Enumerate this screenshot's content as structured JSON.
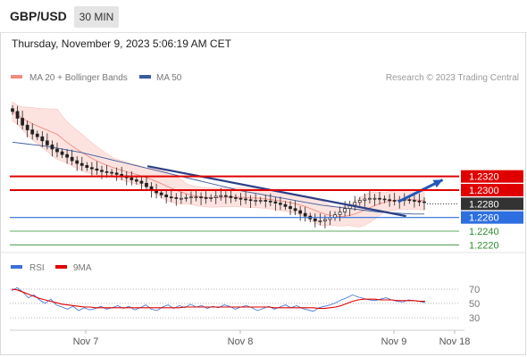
{
  "header": {
    "symbol": "GBP/USD",
    "timeframe": "30 MIN",
    "timestamp": "Thursday, November 9, 2023 5:06:19 AM CET"
  },
  "chart_data": [
    {
      "type": "candlestick",
      "legend": [
        {
          "name": "MA 20 + Bollinger Bands",
          "color": "#f28b82"
        },
        {
          "name": "MA 50",
          "color": "#3b5b9e"
        }
      ],
      "legend_placement": "top-left",
      "watermark": "Research © 2023 Trading Central",
      "ylim": [
        1.221,
        1.245
      ],
      "x_ticks": [
        "Nov 7",
        "Nov 8",
        "Nov 9",
        "Nov 18"
      ],
      "levels": [
        {
          "label": "1.2320",
          "value": 1.232,
          "color": "#e00000",
          "style": "resistance"
        },
        {
          "label": "1.2300",
          "value": 1.23,
          "color": "#e00000",
          "style": "resistance"
        },
        {
          "label": "1.2280",
          "value": 1.228,
          "color": "#333333",
          "style": "last-price"
        },
        {
          "label": "1.2260",
          "value": 1.226,
          "color": "#2d6fe0",
          "style": "pivot"
        },
        {
          "label": "1.2240",
          "value": 1.224,
          "color": "#2e8b2e",
          "style": "support"
        },
        {
          "label": "1.2220",
          "value": 1.222,
          "color": "#2e8b2e",
          "style": "support"
        }
      ],
      "close": [
        1.2415,
        1.2405,
        1.2395,
        1.2388,
        1.2382,
        1.2378,
        1.2372,
        1.2366,
        1.236,
        1.2356,
        1.2352,
        1.2348,
        1.2343,
        1.2339,
        1.2336,
        1.2333,
        1.2331,
        1.2329,
        1.2327,
        1.2326,
        1.2325,
        1.2323,
        1.2321,
        1.2318,
        1.2315,
        1.2313,
        1.231,
        1.2305,
        1.23,
        1.2296,
        1.2293,
        1.229,
        1.2289,
        1.2288,
        1.2288,
        1.2289,
        1.229,
        1.229,
        1.2289,
        1.2288,
        1.2289,
        1.2291,
        1.2292,
        1.2291,
        1.2289,
        1.2288,
        1.2287,
        1.2286,
        1.2285,
        1.2285,
        1.2285,
        1.2284,
        1.2283,
        1.2281,
        1.2279,
        1.2276,
        1.2273,
        1.227,
        1.2266,
        1.2262,
        1.2258,
        1.2255,
        1.2255,
        1.2257,
        1.226,
        1.2264,
        1.2268,
        1.2273,
        1.2278,
        1.2282,
        1.2285,
        1.2287,
        1.2288,
        1.2288,
        1.2287,
        1.2286,
        1.2285,
        1.2284,
        1.2285,
        1.2286,
        1.2285,
        1.2284,
        1.2283,
        1.2282
      ],
      "ma50": [
        1.237,
        1.2368,
        1.2366,
        1.2364,
        1.2361,
        1.2358,
        1.2355,
        1.2351,
        1.2347,
        1.2343,
        1.2339,
        1.2335,
        1.2331,
        1.2327,
        1.2323,
        1.2319,
        1.2315,
        1.2311,
        1.2307,
        1.2303,
        1.2299,
        1.2296,
        1.2293,
        1.229,
        1.2287,
        1.2284,
        1.2281,
        1.2278,
        1.2276,
        1.2274,
        1.2272,
        1.227,
        1.2268,
        1.2267,
        1.2266,
        1.2265,
        1.2265
      ],
      "trendline": [
        [
          0.33,
          1.2335
        ],
        [
          0.95,
          1.2262
        ]
      ],
      "arrow": [
        [
          0.875,
          1.2283
        ],
        [
          0.975,
          1.2315
        ]
      ]
    },
    {
      "type": "line",
      "legend": [
        {
          "name": "RSI",
          "color": "#3b6fd8"
        },
        {
          "name": "9MA",
          "color": "#e00000"
        }
      ],
      "ylim": [
        20,
        80
      ],
      "y_ticks": [
        "70",
        "50",
        "30"
      ],
      "series": [
        {
          "name": "RSI",
          "values": [
            68,
            72,
            66,
            58,
            62,
            55,
            50,
            56,
            48,
            45,
            42,
            46,
            40,
            44,
            41,
            43,
            46,
            42,
            44,
            47,
            43,
            46,
            41,
            44,
            48,
            42,
            40,
            45,
            48,
            43,
            47,
            44,
            49,
            45,
            47,
            43,
            46,
            44,
            48,
            46,
            42,
            45,
            47,
            44,
            40,
            43,
            46,
            42,
            45,
            48,
            44,
            47,
            43,
            41,
            39,
            44,
            46,
            48,
            51,
            55,
            58,
            62,
            59,
            57,
            55,
            54,
            56,
            58,
            55,
            53,
            52,
            55,
            54,
            53,
            51
          ]
        },
        {
          "name": "9MA",
          "values": [
            70,
            69,
            66,
            63,
            60,
            57,
            55,
            53,
            51,
            49,
            48,
            47,
            46,
            45,
            45,
            44,
            44,
            44,
            44,
            44,
            44,
            44,
            44,
            44,
            44,
            44,
            44,
            44,
            44,
            44,
            44,
            45,
            45,
            45,
            45,
            45,
            45,
            45,
            45,
            45,
            45,
            45,
            45,
            45,
            45,
            45,
            45,
            44,
            44,
            44,
            44,
            44,
            44,
            44,
            44,
            43,
            43,
            44,
            45,
            47,
            50,
            53,
            55,
            56,
            56,
            56,
            55,
            55,
            55,
            54,
            54,
            54,
            54,
            53,
            53
          ]
        }
      ]
    }
  ]
}
